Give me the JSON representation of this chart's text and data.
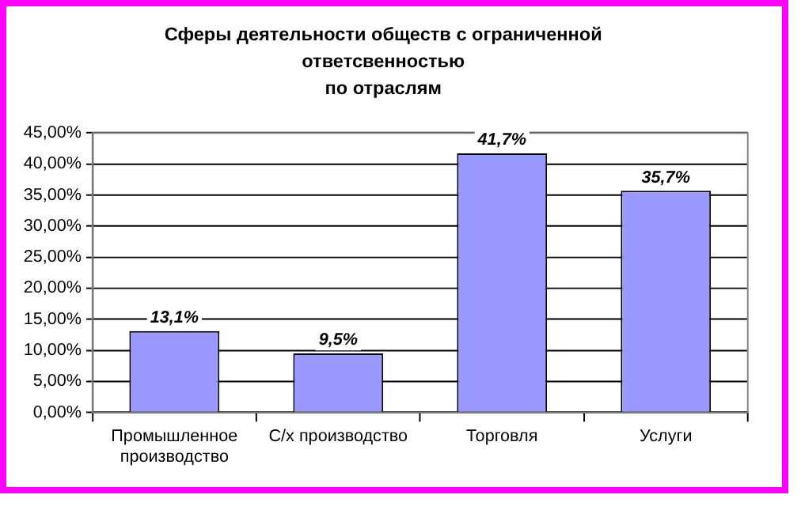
{
  "chart_data": {
    "type": "bar",
    "title": "Сферы деятельности обществ с ограниченной\nответсвенностью\nпо отраслям",
    "categories": [
      "Промышленное\nпроизводство",
      "С/х производство",
      "Торговля",
      "Услуги"
    ],
    "values": [
      13.1,
      9.5,
      41.7,
      35.7
    ],
    "color": "#9999ff",
    "value_labels": [
      "13,1%",
      "9,5%",
      "41,7%",
      "35,7%"
    ],
    "ylim": [
      0,
      45
    ],
    "yticks": [
      {
        "value": 0,
        "label": "0,00%"
      },
      {
        "value": 5,
        "label": "5,00%"
      },
      {
        "value": 10,
        "label": "10,00%"
      },
      {
        "value": 15,
        "label": "15,00%"
      },
      {
        "value": 20,
        "label": "20,00%"
      },
      {
        "value": 25,
        "label": "25,00%"
      },
      {
        "value": 30,
        "label": "30,00%"
      },
      {
        "value": 35,
        "label": "35,00%"
      },
      {
        "value": 40,
        "label": "40,00%"
      },
      {
        "value": 45,
        "label": "45,00%"
      }
    ],
    "grid": "y",
    "legend": false
  }
}
